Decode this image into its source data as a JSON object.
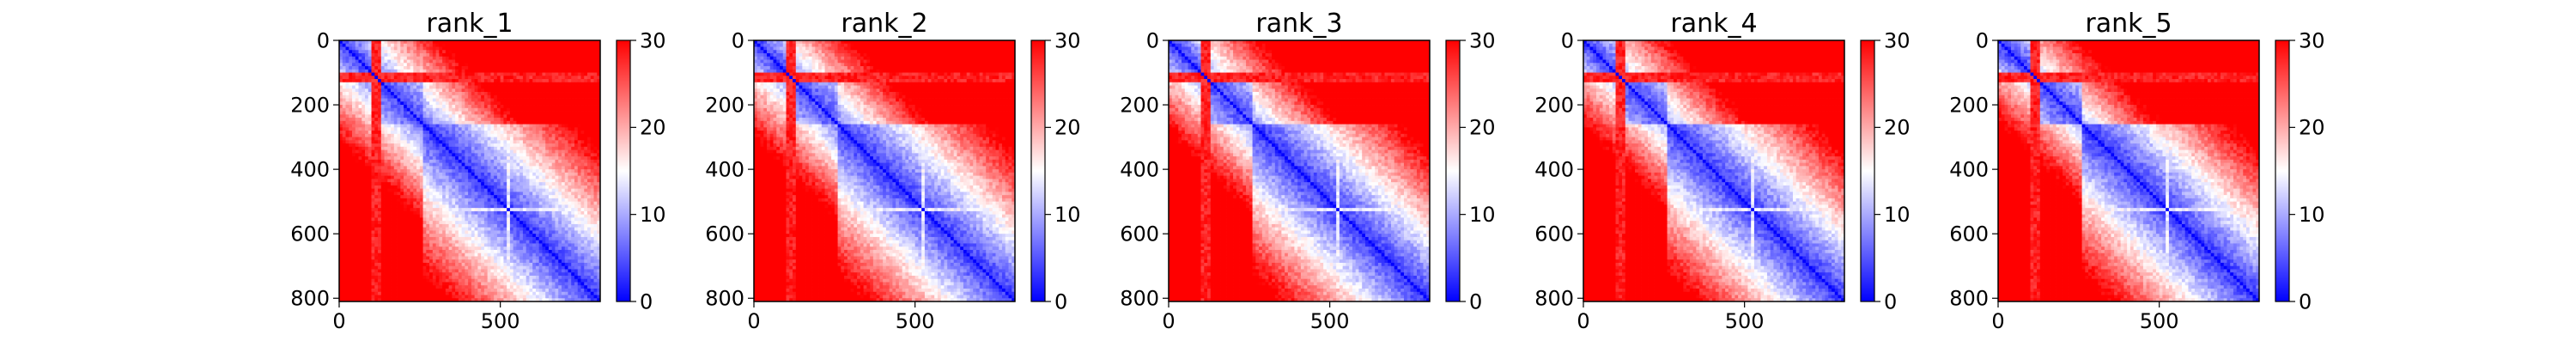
{
  "chart_data": [
    {
      "type": "heatmap",
      "title": "rank_1",
      "x_ticks": [
        "0",
        "500"
      ],
      "y_ticks": [
        "0",
        "200",
        "400",
        "600",
        "800"
      ],
      "x_tick_values": [
        0,
        500
      ],
      "y_tick_values": [
        0,
        200,
        400,
        600,
        800
      ],
      "xlim": [
        0,
        810
      ],
      "ylim": [
        810,
        0
      ],
      "colorbar": {
        "ticks": [
          "0",
          "10",
          "20",
          "30"
        ],
        "tick_values": [
          0,
          10,
          20,
          30
        ],
        "range": [
          0,
          30
        ],
        "colormap": "bwr"
      },
      "block_boundaries": [
        0,
        40,
        100,
        130,
        150,
        200,
        260,
        520,
        810
      ],
      "secondary_structure_transitions": [
        [
          100,
          130
        ],
        [
          520,
          530
        ]
      ]
    },
    {
      "type": "heatmap",
      "title": "rank_2",
      "x_ticks": [
        "0",
        "500"
      ],
      "y_ticks": [
        "0",
        "200",
        "400",
        "600",
        "800"
      ],
      "x_tick_values": [
        0,
        500
      ],
      "y_tick_values": [
        0,
        200,
        400,
        600,
        800
      ],
      "xlim": [
        0,
        810
      ],
      "ylim": [
        810,
        0
      ],
      "colorbar": {
        "ticks": [
          "0",
          "10",
          "20",
          "30"
        ],
        "tick_values": [
          0,
          10,
          20,
          30
        ],
        "range": [
          0,
          30
        ],
        "colormap": "bwr"
      },
      "block_boundaries": [
        0,
        40,
        100,
        130,
        150,
        200,
        260,
        520,
        810
      ],
      "secondary_structure_transitions": [
        [
          100,
          130
        ],
        [
          520,
          530
        ]
      ]
    },
    {
      "type": "heatmap",
      "title": "rank_3",
      "x_ticks": [
        "0",
        "500"
      ],
      "y_ticks": [
        "0",
        "200",
        "400",
        "600",
        "800"
      ],
      "x_tick_values": [
        0,
        500
      ],
      "y_tick_values": [
        0,
        200,
        400,
        600,
        800
      ],
      "xlim": [
        0,
        810
      ],
      "ylim": [
        810,
        0
      ],
      "colorbar": {
        "ticks": [
          "0",
          "10",
          "20",
          "30"
        ],
        "tick_values": [
          0,
          10,
          20,
          30
        ],
        "range": [
          0,
          30
        ],
        "colormap": "bwr"
      },
      "block_boundaries": [
        0,
        40,
        100,
        130,
        150,
        200,
        260,
        520,
        810
      ],
      "secondary_structure_transitions": [
        [
          100,
          130
        ],
        [
          520,
          530
        ]
      ]
    },
    {
      "type": "heatmap",
      "title": "rank_4",
      "x_ticks": [
        "0",
        "500"
      ],
      "y_ticks": [
        "0",
        "200",
        "400",
        "600",
        "800"
      ],
      "x_tick_values": [
        0,
        500
      ],
      "y_tick_values": [
        0,
        200,
        400,
        600,
        800
      ],
      "xlim": [
        0,
        810
      ],
      "ylim": [
        810,
        0
      ],
      "colorbar": {
        "ticks": [
          "0",
          "10",
          "20",
          "30"
        ],
        "tick_values": [
          0,
          10,
          20,
          30
        ],
        "range": [
          0,
          30
        ],
        "colormap": "bwr"
      },
      "block_boundaries": [
        0,
        40,
        100,
        130,
        150,
        200,
        260,
        520,
        810
      ],
      "secondary_structure_transitions": [
        [
          100,
          130
        ],
        [
          520,
          530
        ]
      ]
    },
    {
      "type": "heatmap",
      "title": "rank_5",
      "x_ticks": [
        "0",
        "500"
      ],
      "y_ticks": [
        "0",
        "200",
        "400",
        "600",
        "800"
      ],
      "x_tick_values": [
        0,
        500
      ],
      "y_tick_values": [
        0,
        200,
        400,
        600,
        800
      ],
      "xlim": [
        0,
        810
      ],
      "ylim": [
        810,
        0
      ],
      "colorbar": {
        "ticks": [
          "0",
          "10",
          "20",
          "30"
        ],
        "tick_values": [
          0,
          10,
          20,
          30
        ],
        "range": [
          0,
          30
        ],
        "colormap": "bwr"
      },
      "block_boundaries": [
        0,
        40,
        100,
        130,
        150,
        200,
        260,
        520,
        810
      ],
      "secondary_structure_transitions": [
        [
          100,
          130
        ],
        [
          520,
          530
        ]
      ]
    }
  ],
  "colors": {
    "low": "#0000ff",
    "mid": "#ffffff",
    "high": "#ff0000",
    "axis": "#000000"
  }
}
